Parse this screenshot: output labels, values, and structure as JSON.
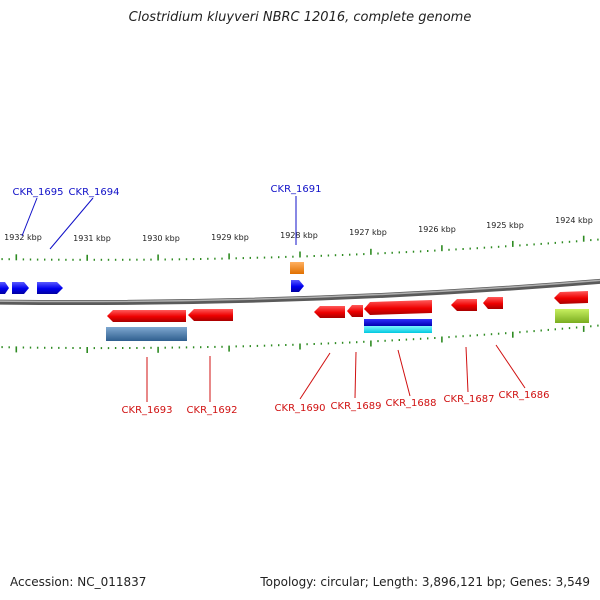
{
  "title": "Clostridium kluyveri NBRC 12016, complete genome",
  "footer": {
    "accession": "Accession: NC_011837",
    "summary": "Topology: circular; Length: 3,896,121 bp; Genes: 3,549"
  },
  "colors": {
    "backbone": "#7f7f7f",
    "tick": "#2e8b22",
    "forward_label": "#1010c8",
    "reverse_label": "#d01010",
    "forward_gene": "#0a0aff",
    "reverse_gene": "#ff1010",
    "orange_feature": "#ff8c1a",
    "steelblue_feature": "#4682b4",
    "cyan_feature": "#00e5ff",
    "lime_feature": "#9acd32"
  },
  "scale": {
    "unit": "kbp",
    "labels": [
      "1932 kbp",
      "1931 kbp",
      "1930 kbp",
      "1929 kbp",
      "1928 kbp",
      "1927 kbp",
      "1926 kbp",
      "1925 kbp",
      "1924 kbp"
    ]
  },
  "genes_forward": [
    {
      "id": "CKR_1695"
    },
    {
      "id": "CKR_1694"
    },
    {
      "id": "CKR_1691"
    }
  ],
  "genes_reverse": [
    {
      "id": "CKR_1693"
    },
    {
      "id": "CKR_1692"
    },
    {
      "id": "CKR_1690"
    },
    {
      "id": "CKR_1689"
    },
    {
      "id": "CKR_1688"
    },
    {
      "id": "CKR_1687"
    },
    {
      "id": "CKR_1686"
    }
  ]
}
